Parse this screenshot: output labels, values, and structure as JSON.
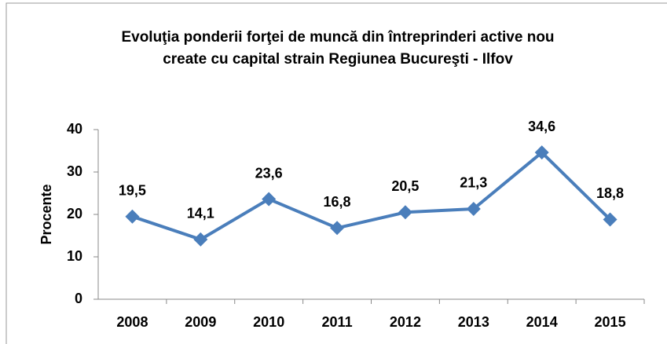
{
  "chart_data": {
    "type": "line",
    "title": [
      "Evoluţia ponderii forţei de muncă din întreprinderi active nou",
      "create cu capital strain Regiunea  Bucureşti - Ilfov"
    ],
    "y_label": "Procente",
    "categories": [
      "2008",
      "2009",
      "2010",
      "2011",
      "2012",
      "2013",
      "2014",
      "2015"
    ],
    "series": [
      {
        "name": "Procente",
        "color": "#4a7ebb",
        "values": [
          19.5,
          14.1,
          23.6,
          16.8,
          20.5,
          21.3,
          34.6,
          18.8
        ],
        "value_labels": [
          "19,5",
          "14,1",
          "23,6",
          "16,8",
          "20,5",
          "21,3",
          "34,6",
          "18,8"
        ]
      }
    ],
    "ylim": [
      0,
      40
    ],
    "yticks": [
      0,
      10,
      20,
      30,
      40
    ],
    "grid": false
  }
}
